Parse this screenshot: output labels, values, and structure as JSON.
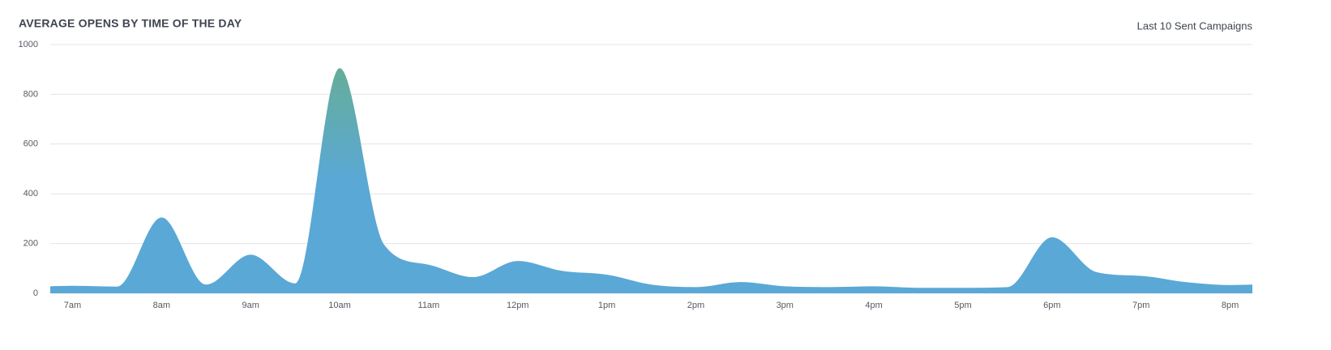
{
  "chart_data": {
    "type": "area",
    "title": "AVERAGE OPENS BY TIME OF THE DAY",
    "subtitle": "Last 10 Sent Campaigns",
    "x": [
      6.75,
      7,
      7.5,
      8,
      8.5,
      9,
      9.5,
      10,
      10.5,
      11,
      11.5,
      12,
      12.5,
      13,
      13.5,
      14,
      14.5,
      15,
      15.5,
      16,
      16.5,
      17,
      17.5,
      18,
      18.5,
      19,
      19.5,
      20,
      20.25
    ],
    "values": [
      28,
      30,
      27,
      305,
      35,
      155,
      40,
      905,
      195,
      115,
      65,
      130,
      90,
      75,
      35,
      25,
      45,
      28,
      25,
      28,
      22,
      22,
      25,
      225,
      85,
      70,
      45,
      33,
      35
    ],
    "xlim": [
      6.75,
      20.25
    ],
    "xticks": [
      {
        "value": 7,
        "label": "7am"
      },
      {
        "value": 8,
        "label": "8am"
      },
      {
        "value": 9,
        "label": "9am"
      },
      {
        "value": 10,
        "label": "10am"
      },
      {
        "value": 11,
        "label": "11am"
      },
      {
        "value": 12,
        "label": "12pm"
      },
      {
        "value": 13,
        "label": "1pm"
      },
      {
        "value": 14,
        "label": "2pm"
      },
      {
        "value": 15,
        "label": "3pm"
      },
      {
        "value": 16,
        "label": "4pm"
      },
      {
        "value": 17,
        "label": "5pm"
      },
      {
        "value": 18,
        "label": "6pm"
      },
      {
        "value": 19,
        "label": "7pm"
      },
      {
        "value": 20,
        "label": "8pm"
      }
    ],
    "ylim": [
      0,
      1000
    ],
    "yticks": [
      0,
      200,
      400,
      600,
      800,
      1000
    ],
    "grid": true,
    "color": "#5aa8d6",
    "peak_color": "#68ae8c"
  }
}
